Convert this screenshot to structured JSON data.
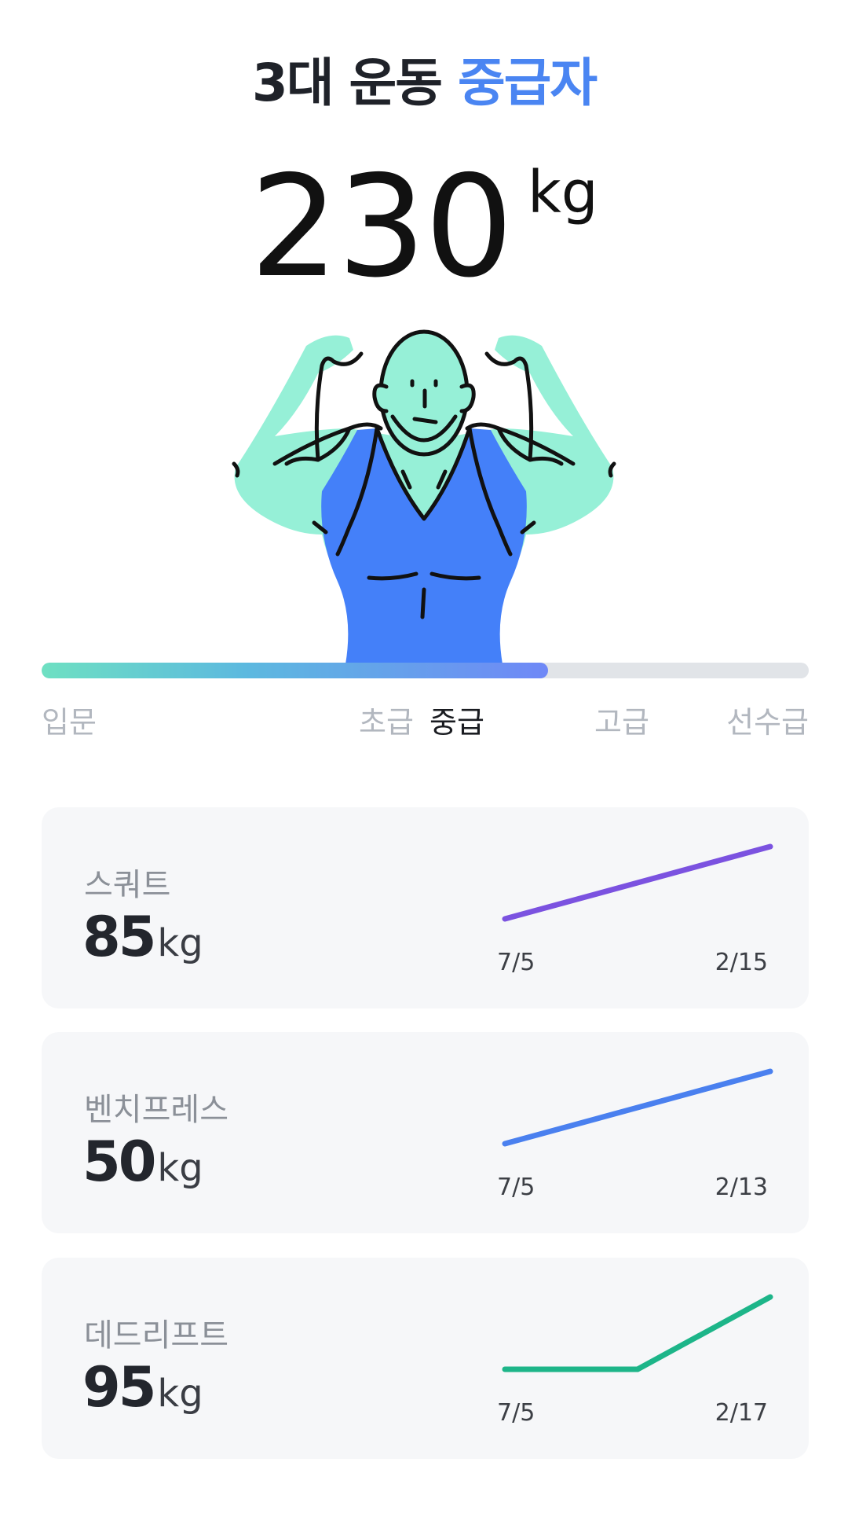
{
  "header": {
    "title_prefix": "3대 운동",
    "title_level": "중급자",
    "accent_color": "#4a85f2"
  },
  "total": {
    "value": "230",
    "unit": "kg"
  },
  "progress": {
    "fraction": 0.66,
    "levels": [
      "입문",
      "초급",
      "중급",
      "고급",
      "선수급"
    ],
    "current_level": "중급"
  },
  "lifts": [
    {
      "name": "스쿼트",
      "value": "85",
      "unit": "kg",
      "start_date": "7/5",
      "end_date": "2/15",
      "color": "#7b52e0",
      "trend": [
        65,
        85
      ]
    },
    {
      "name": "벤치프레스",
      "value": "50",
      "unit": "kg",
      "start_date": "7/5",
      "end_date": "2/13",
      "color": "#4a80ef",
      "trend": [
        30,
        50
      ]
    },
    {
      "name": "데드리프트",
      "value": "95",
      "unit": "kg",
      "start_date": "7/5",
      "end_date": "2/17",
      "color": "#1db589",
      "trend": [
        75,
        75,
        95
      ]
    }
  ]
}
